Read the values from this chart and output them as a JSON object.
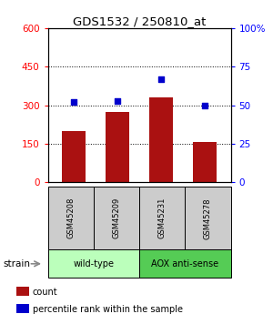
{
  "title": "GDS1532 / 250810_at",
  "samples": [
    "GSM45208",
    "GSM45209",
    "GSM45231",
    "GSM45278"
  ],
  "counts": [
    200,
    275,
    330,
    155
  ],
  "percentiles": [
    52,
    53,
    67,
    50
  ],
  "bar_color": "#aa1111",
  "dot_color": "#0000cc",
  "left_ylim": [
    0,
    600
  ],
  "left_yticks": [
    0,
    150,
    300,
    450,
    600
  ],
  "right_ylim": [
    0,
    100
  ],
  "right_yticks": [
    0,
    25,
    50,
    75,
    100
  ],
  "grid_values": [
    150,
    300,
    450
  ],
  "groups": [
    {
      "label": "wild-type",
      "samples": [
        0,
        1
      ],
      "color": "#bbffbb"
    },
    {
      "label": "AOX anti-sense",
      "samples": [
        2,
        3
      ],
      "color": "#55cc55"
    }
  ],
  "strain_label": "strain",
  "legend_count_label": "count",
  "legend_pct_label": "percentile rank within the sample",
  "bar_width": 0.55,
  "sample_box_color": "#cccccc",
  "background_color": "#ffffff"
}
